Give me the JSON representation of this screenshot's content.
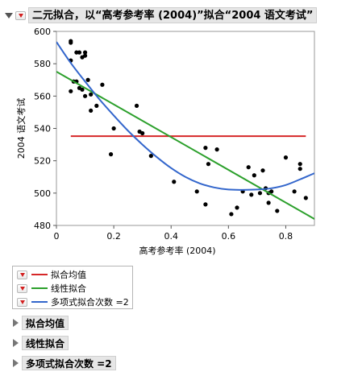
{
  "header": {
    "title": "二元拟合，以“高考参考率 (2004)”拟合“2004 语文考试”"
  },
  "legend": {
    "items": [
      {
        "label": "拟合均值",
        "color": "#d62728"
      },
      {
        "label": "线性拟合",
        "color": "#2ca02c"
      },
      {
        "label": "多项式拟合次数 =2",
        "color": "#3366cc"
      }
    ]
  },
  "outline": {
    "items": [
      {
        "label": "拟合均值"
      },
      {
        "label": "线性拟合"
      },
      {
        "label": "多项式拟合次数 =2"
      }
    ]
  },
  "chart_data": {
    "type": "scatter",
    "xlabel": "高考参考率 (2004)",
    "ylabel": "2004 语文考试",
    "xlim": [
      0,
      0.9
    ],
    "ylim": [
      480,
      600
    ],
    "xticks": [
      "0",
      "0.2",
      "0.4",
      "0.6",
      "0.8"
    ],
    "yticks": [
      "480",
      "500",
      "520",
      "540",
      "560",
      "580",
      "600"
    ],
    "grid": false,
    "points": [
      [
        0.05,
        594
      ],
      [
        0.05,
        593
      ],
      [
        0.05,
        582
      ],
      [
        0.06,
        569
      ],
      [
        0.05,
        563
      ],
      [
        0.07,
        587
      ],
      [
        0.08,
        587
      ],
      [
        0.07,
        569
      ],
      [
        0.08,
        565
      ],
      [
        0.09,
        564
      ],
      [
        0.09,
        584
      ],
      [
        0.1,
        587
      ],
      [
        0.1,
        585
      ],
      [
        0.1,
        560
      ],
      [
        0.11,
        570
      ],
      [
        0.12,
        561
      ],
      [
        0.12,
        551
      ],
      [
        0.14,
        554
      ],
      [
        0.16,
        567
      ],
      [
        0.19,
        524
      ],
      [
        0.2,
        540
      ],
      [
        0.28,
        554
      ],
      [
        0.29,
        538
      ],
      [
        0.3,
        537
      ],
      [
        0.33,
        523
      ],
      [
        0.41,
        507
      ],
      [
        0.49,
        501
      ],
      [
        0.52,
        528
      ],
      [
        0.52,
        493
      ],
      [
        0.53,
        518
      ],
      [
        0.56,
        527
      ],
      [
        0.61,
        487
      ],
      [
        0.63,
        491
      ],
      [
        0.65,
        501
      ],
      [
        0.67,
        516
      ],
      [
        0.68,
        499
      ],
      [
        0.69,
        511
      ],
      [
        0.71,
        500
      ],
      [
        0.72,
        514
      ],
      [
        0.73,
        503
      ],
      [
        0.74,
        494
      ],
      [
        0.74,
        500
      ],
      [
        0.75,
        501
      ],
      [
        0.77,
        489
      ],
      [
        0.8,
        522
      ],
      [
        0.83,
        501
      ],
      [
        0.85,
        518
      ],
      [
        0.85,
        515
      ],
      [
        0.87,
        497
      ]
    ],
    "series": [
      {
        "name": "拟合均值",
        "type": "line",
        "color": "#d62728",
        "x": [
          0.05,
          0.87
        ],
        "y": [
          535.2,
          535.2
        ]
      },
      {
        "name": "线性拟合",
        "type": "line",
        "color": "#2ca02c",
        "x": [
          0.0,
          0.9
        ],
        "y": [
          575.1,
          484.0
        ]
      },
      {
        "name": "多项式拟合次数 =2",
        "type": "curve",
        "color": "#3366cc",
        "x": [
          0.0,
          0.05,
          0.1,
          0.15,
          0.2,
          0.25,
          0.3,
          0.35,
          0.4,
          0.45,
          0.5,
          0.55,
          0.6,
          0.65,
          0.7,
          0.75,
          0.8,
          0.85,
          0.9
        ],
        "y": [
          593.5,
          580.5,
          569.0,
          558.0,
          548.0,
          538.5,
          530.0,
          522.3,
          515.5,
          510.0,
          506.0,
          503.5,
          502.2,
          502.0,
          502.2,
          503.0,
          505.0,
          508.5,
          512.3
        ]
      }
    ]
  }
}
